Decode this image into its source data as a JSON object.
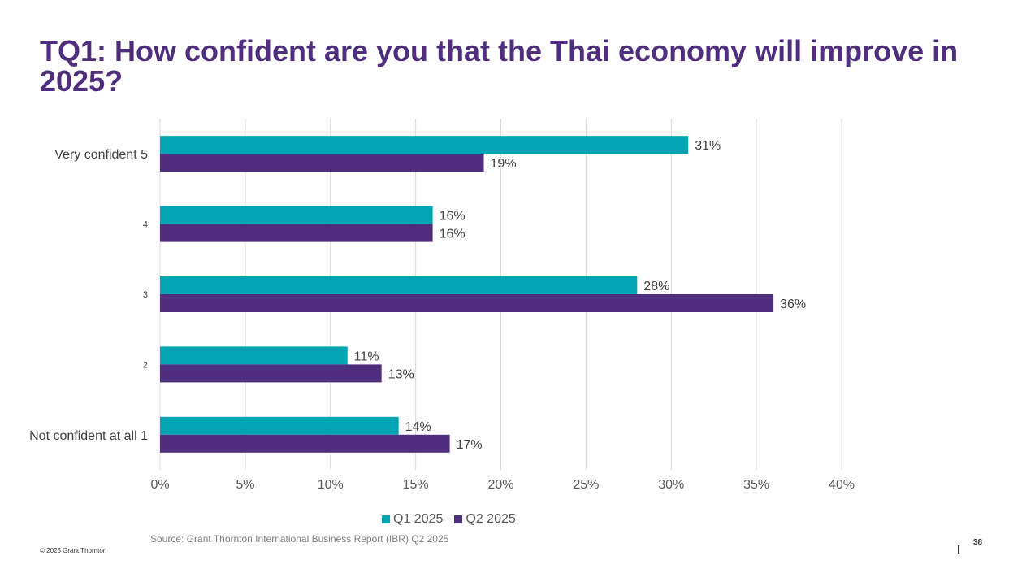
{
  "slide": {
    "title": "TQ1: How confident are you that the Thai economy will improve in 2025?",
    "source": "Source: Grant Thornton International Business Report (IBR) Q2 2025",
    "copyright": "© 2025  Grant Thornton",
    "page_number": "38"
  },
  "chart_data": {
    "type": "bar",
    "orientation": "horizontal",
    "title": "",
    "xlabel": "",
    "ylabel": "",
    "categories": [
      "Very confident 5",
      "4",
      "3",
      "2",
      "Not confident at all 1"
    ],
    "series": [
      {
        "name": "Q1 2025",
        "color": "#00a4b3",
        "values": [
          31,
          16,
          28,
          11,
          14
        ]
      },
      {
        "name": "Q2 2025",
        "color": "#4f2d7f",
        "values": [
          19,
          16,
          36,
          13,
          17
        ]
      }
    ],
    "xlim": [
      0,
      40
    ],
    "x_ticks": [
      0,
      5,
      10,
      15,
      20,
      25,
      30,
      35,
      40
    ],
    "tick_suffix": "%",
    "value_suffix": "%",
    "grid": true,
    "legend_position": "bottom"
  }
}
